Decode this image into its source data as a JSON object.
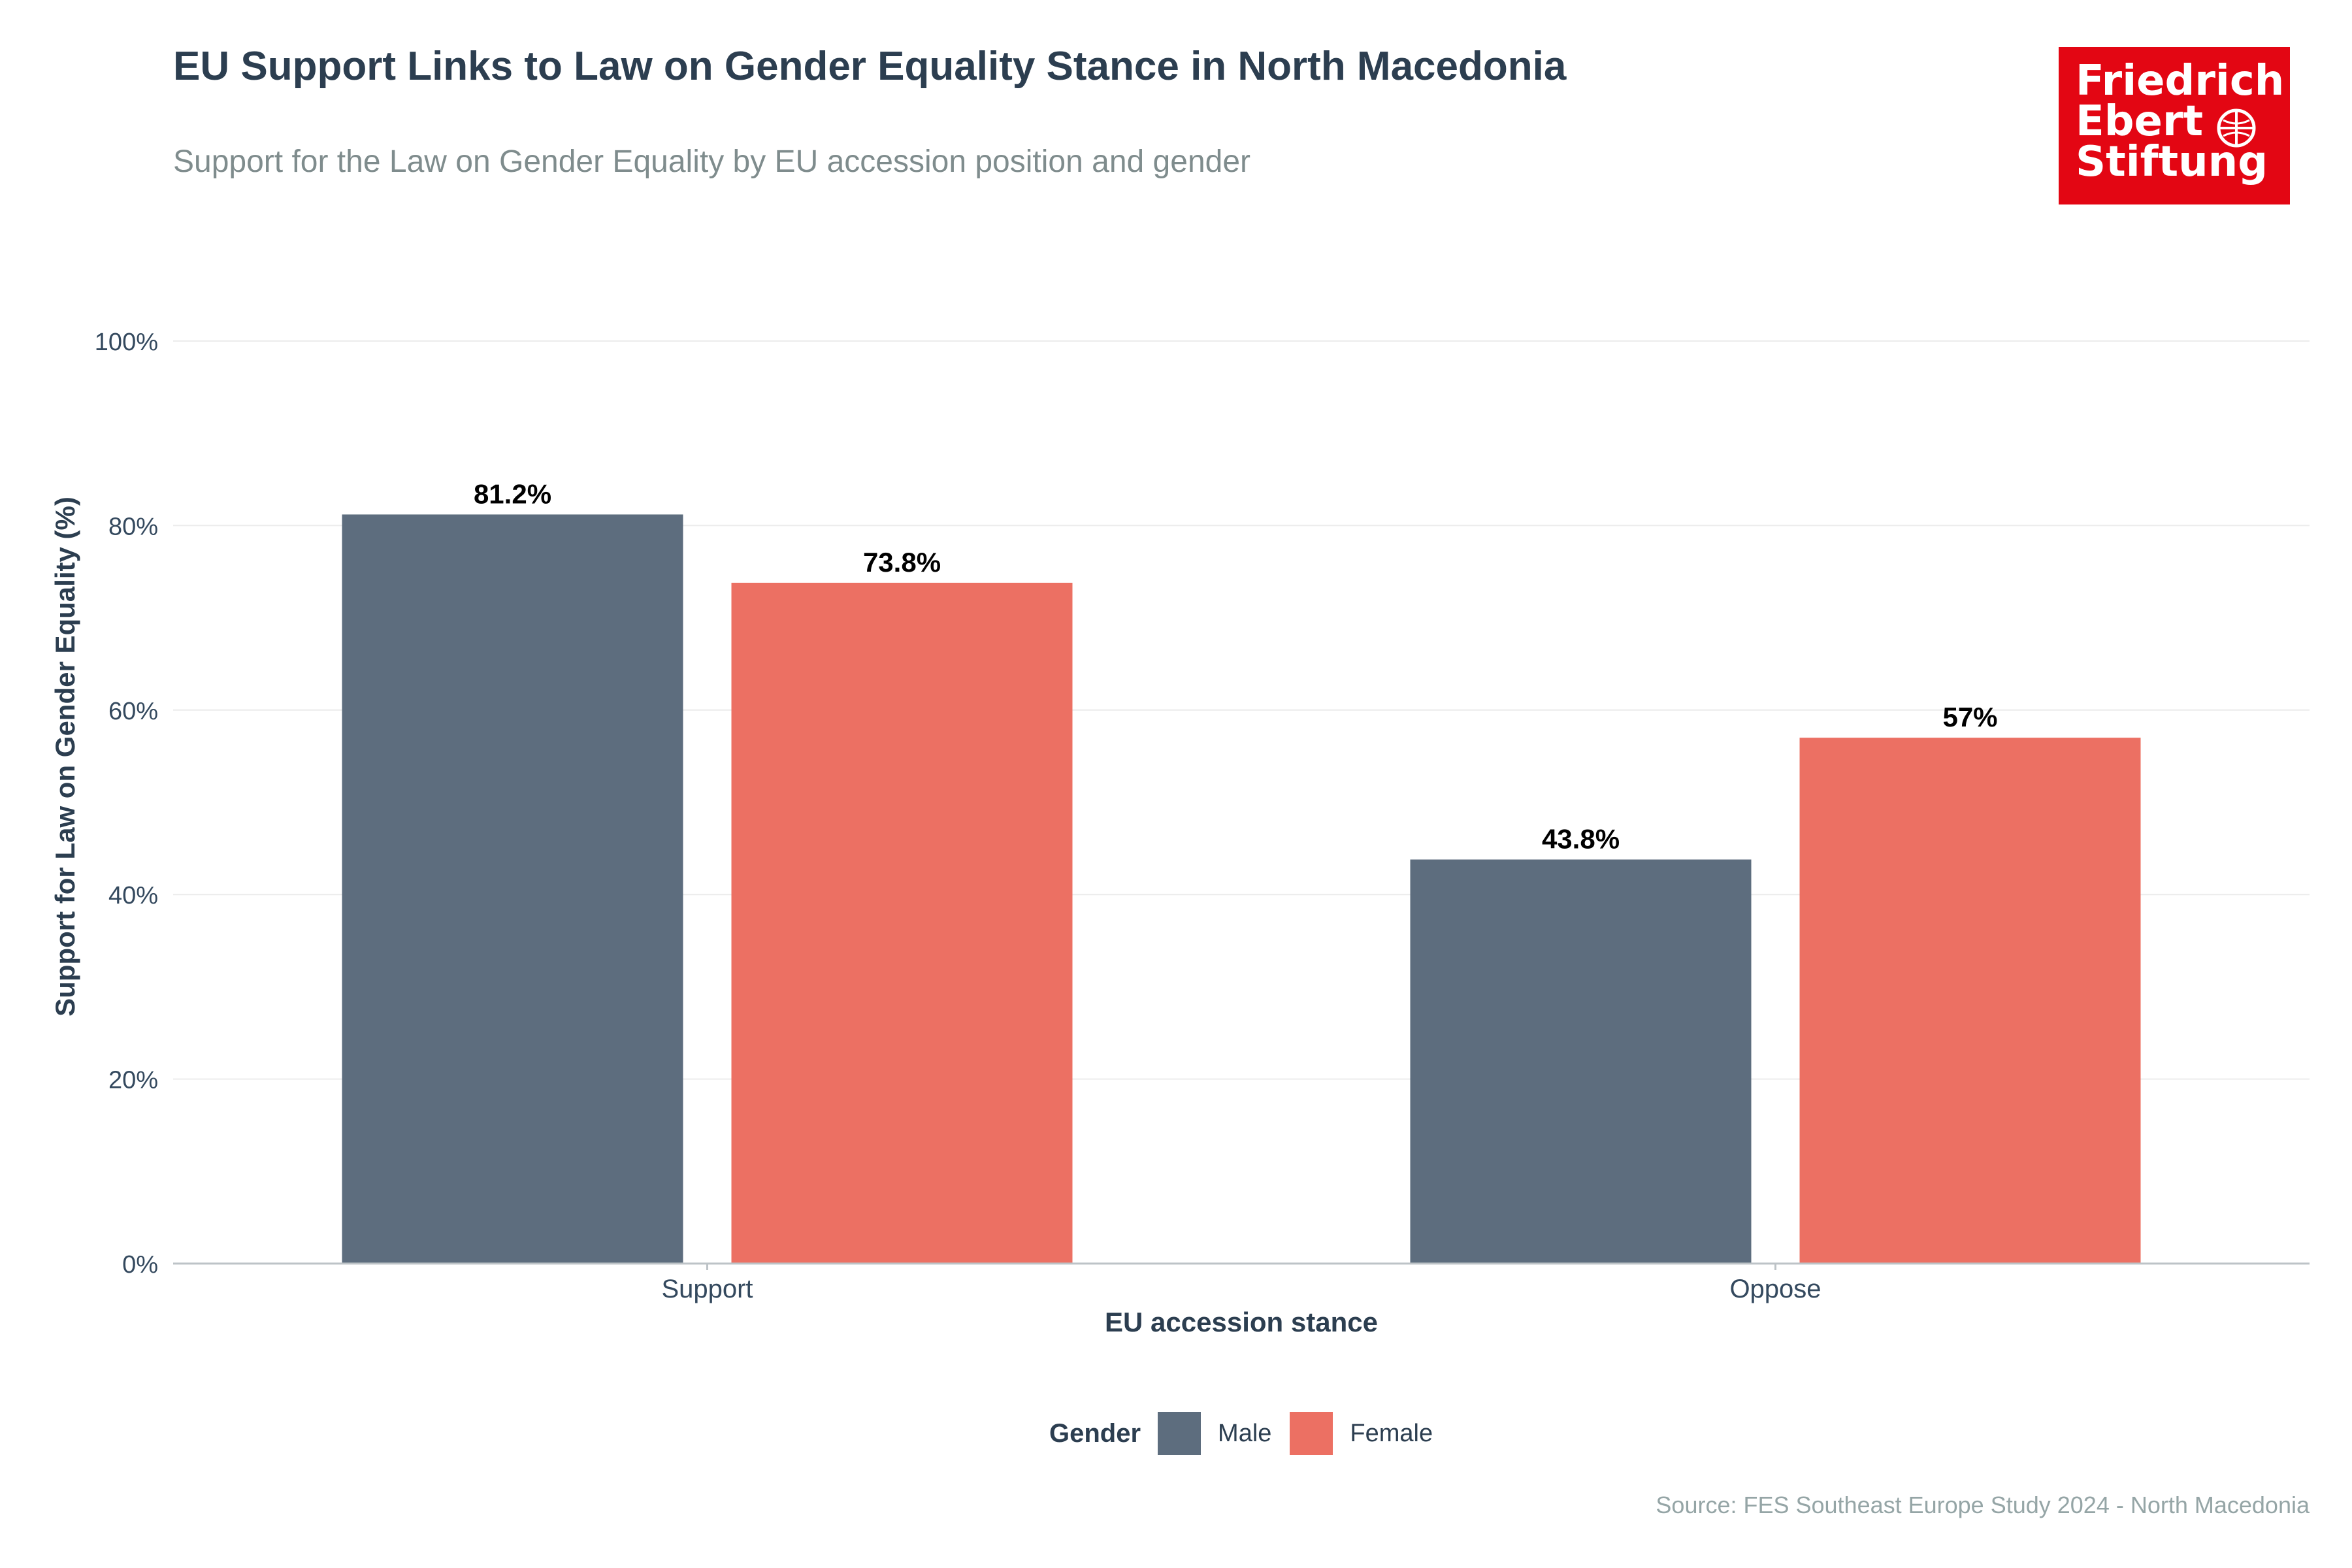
{
  "title": "EU Support Links to Law on Gender Equality Stance in North Macedonia",
  "subtitle": "Support for the Law on Gender Equality by EU accession position and gender",
  "logo": {
    "line1": "Friedrich",
    "line2": "Ebert",
    "line3": "Stiftung",
    "color": "#e30613"
  },
  "source": "Source: FES Southeast Europe Study 2024 - North Macedonia",
  "legend": {
    "title": "Gender",
    "items": [
      {
        "label": "Male",
        "color": "#5d6d7e"
      },
      {
        "label": "Female",
        "color": "#ec7063"
      }
    ]
  },
  "chart_data": {
    "type": "bar",
    "categories": [
      "Support",
      "Oppose"
    ],
    "series": [
      {
        "name": "Male",
        "values": [
          81.2,
          43.8
        ],
        "labels": [
          "81.2%",
          "43.8%"
        ],
        "color": "#5d6d7e"
      },
      {
        "name": "Female",
        "values": [
          73.8,
          57
        ],
        "labels": [
          "73.8%",
          "57%"
        ],
        "color": "#ec7063"
      }
    ],
    "xlabel": "EU accession stance",
    "ylabel": "Support for Law on Gender Equality (%)",
    "ylim": [
      0,
      100
    ],
    "yticks": [
      0,
      20,
      40,
      60,
      80,
      100
    ],
    "ytick_labels": [
      "0%",
      "20%",
      "40%",
      "60%",
      "80%",
      "100%"
    ],
    "grid": true,
    "legend_position": "bottom"
  }
}
